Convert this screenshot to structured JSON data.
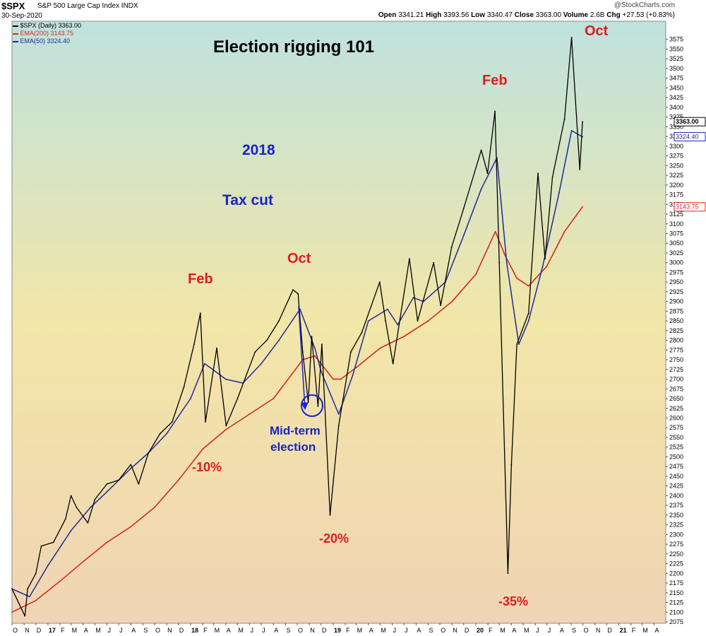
{
  "header": {
    "symbol": "$SPX",
    "description": "S&P 500 Large Cap Index  INDX",
    "date": "30-Sep-2020",
    "watermark": "@StockCharts.com",
    "open_label": "Open",
    "open": "3341.21",
    "high_label": "High",
    "high": "3393.56",
    "low_label": "Low",
    "low": "3340.47",
    "close_label": "Close",
    "close": "3363.00",
    "volume_label": "Volume",
    "volume": "2.6B",
    "chg_label": "Chg",
    "chg": "+27.53 (+0.83%)"
  },
  "legend": {
    "price": "$SPX (Daily) 3363.00",
    "ema200": "EMA(200) 3143.75",
    "ema50": "EMA(50) 3324.40"
  },
  "colors": {
    "price": "#000000",
    "ema200": "#d42a1f",
    "ema50": "#1f2a9a",
    "annotation_red": "#e01c1c",
    "annotation_blue": "#1a22cc",
    "bg_top": "#bfe2de",
    "bg_mid": "#f2e6a8",
    "bg_bottom": "#f0d4b4"
  },
  "chart_data": {
    "type": "line",
    "title": "Election rigging 101",
    "ylim": [
      2075,
      3600
    ],
    "xlim": [
      "2016-10",
      "2021-05"
    ],
    "y_ticks": [
      2075,
      2100,
      2125,
      2150,
      2175,
      2200,
      2225,
      2250,
      2275,
      2300,
      2325,
      2350,
      2375,
      2400,
      2425,
      2450,
      2475,
      2500,
      2525,
      2550,
      2575,
      2600,
      2625,
      2650,
      2675,
      2700,
      2725,
      2750,
      2775,
      2800,
      2825,
      2850,
      2875,
      2900,
      2925,
      2950,
      2975,
      3000,
      3025,
      3050,
      3075,
      3100,
      3125,
      3150,
      3175,
      3200,
      3225,
      3250,
      3275,
      3300,
      3325,
      3350,
      3375,
      3400,
      3425,
      3450,
      3475,
      3500,
      3525,
      3550,
      3575
    ],
    "x_ticks": [
      "O",
      "N",
      "D",
      "17",
      "F",
      "M",
      "A",
      "M",
      "J",
      "J",
      "A",
      "S",
      "O",
      "N",
      "D",
      "18",
      "F",
      "M",
      "A",
      "M",
      "J",
      "J",
      "A",
      "S",
      "O",
      "N",
      "D",
      "19",
      "F",
      "M",
      "A",
      "M",
      "J",
      "J",
      "A",
      "S",
      "O",
      "N",
      "D",
      "20",
      "F",
      "M",
      "A",
      "M",
      "J",
      "J",
      "A",
      "S",
      "O",
      "N",
      "D",
      "21",
      "F",
      "M",
      "A"
    ],
    "value_labels": [
      {
        "value": "3363.00",
        "series": "$SPX"
      },
      {
        "value": "3324.40",
        "series": "EMA(50)"
      },
      {
        "value": "3143.75",
        "series": "EMA(200)"
      }
    ],
    "series": [
      {
        "name": "$SPX",
        "x": [
          "2016-10-01",
          "2016-11-03",
          "2016-11-10",
          "2016-12-01",
          "2016-12-15",
          "2017-01-15",
          "2017-02-15",
          "2017-03-01",
          "2017-03-15",
          "2017-04-13",
          "2017-05-01",
          "2017-06-01",
          "2017-07-01",
          "2017-08-01",
          "2017-08-21",
          "2017-09-15",
          "2017-10-15",
          "2017-11-15",
          "2017-12-15",
          "2018-01-10",
          "2018-01-26",
          "2018-02-08",
          "2018-03-09",
          "2018-04-02",
          "2018-05-01",
          "2018-06-15",
          "2018-07-15",
          "2018-08-15",
          "2018-09-20",
          "2018-10-03",
          "2018-10-15",
          "2018-10-29",
          "2018-11-07",
          "2018-11-23",
          "2018-12-03",
          "2018-12-24",
          "2019-01-15",
          "2019-02-15",
          "2019-03-15",
          "2019-04-30",
          "2019-05-15",
          "2019-06-03",
          "2019-07-15",
          "2019-08-05",
          "2019-09-15",
          "2019-10-03",
          "2019-10-31",
          "2019-12-01",
          "2020-01-15",
          "2020-01-31",
          "2020-02-19",
          "2020-03-01",
          "2020-03-23",
          "2020-04-01",
          "2020-04-15",
          "2020-05-15",
          "2020-06-08",
          "2020-06-26",
          "2020-07-15",
          "2020-08-15",
          "2020-09-02",
          "2020-09-23",
          "2020-09-30"
        ],
        "y": [
          2160,
          2090,
          2160,
          2200,
          2270,
          2280,
          2340,
          2400,
          2370,
          2330,
          2390,
          2430,
          2440,
          2480,
          2430,
          2510,
          2560,
          2590,
          2680,
          2790,
          2870,
          2590,
          2780,
          2580,
          2650,
          2770,
          2800,
          2850,
          2930,
          2920,
          2770,
          2640,
          2810,
          2630,
          2790,
          2350,
          2580,
          2770,
          2820,
          2950,
          2850,
          2740,
          3010,
          2850,
          3000,
          2890,
          3040,
          3140,
          3290,
          3230,
          3390,
          3000,
          2200,
          2480,
          2790,
          2870,
          3230,
          3010,
          3220,
          3370,
          3580,
          3240,
          3363
        ]
      },
      {
        "name": "EMA(50)",
        "x": [
          "2016-10-01",
          "2016-11-15",
          "2017-01-01",
          "2017-03-01",
          "2017-04-20",
          "2017-06-01",
          "2017-08-01",
          "2017-09-15",
          "2017-11-01",
          "2018-01-01",
          "2018-02-06",
          "2018-02-20",
          "2018-04-01",
          "2018-05-15",
          "2018-07-01",
          "2018-08-15",
          "2018-10-08",
          "2018-11-15",
          "2018-12-01",
          "2019-01-15",
          "2019-02-20",
          "2019-04-01",
          "2019-05-20",
          "2019-06-15",
          "2019-07-25",
          "2019-08-20",
          "2019-10-15",
          "2019-12-01",
          "2020-01-15",
          "2020-02-24",
          "2020-03-20",
          "2020-04-20",
          "2020-05-15",
          "2020-06-20",
          "2020-08-01",
          "2020-09-02",
          "2020-09-30"
        ],
        "y": [
          2160,
          2140,
          2220,
          2310,
          2370,
          2410,
          2470,
          2510,
          2560,
          2650,
          2740,
          2730,
          2700,
          2690,
          2740,
          2800,
          2880,
          2780,
          2720,
          2610,
          2710,
          2850,
          2880,
          2840,
          2910,
          2900,
          2950,
          3070,
          3190,
          3270,
          3000,
          2790,
          2850,
          2990,
          3180,
          3340,
          3324
        ]
      },
      {
        "name": "EMA(200)",
        "x": [
          "2016-10-01",
          "2016-12-01",
          "2017-02-01",
          "2017-04-01",
          "2017-06-01",
          "2017-08-01",
          "2017-10-01",
          "2017-12-01",
          "2018-02-01",
          "2018-04-01",
          "2018-06-01",
          "2018-08-01",
          "2018-10-15",
          "2018-11-15",
          "2019-01-01",
          "2019-01-20",
          "2019-03-01",
          "2019-05-01",
          "2019-07-01",
          "2019-09-01",
          "2019-11-01",
          "2020-01-01",
          "2020-02-20",
          "2020-03-15",
          "2020-04-15",
          "2020-05-15",
          "2020-06-30",
          "2020-08-15",
          "2020-09-30"
        ],
        "y": [
          2100,
          2130,
          2180,
          2230,
          2280,
          2320,
          2370,
          2440,
          2520,
          2570,
          2610,
          2650,
          2750,
          2760,
          2700,
          2700,
          2730,
          2780,
          2810,
          2850,
          2900,
          2970,
          3080,
          3020,
          2960,
          2940,
          2990,
          3080,
          3144
        ]
      }
    ],
    "annotations": [
      {
        "text": "Feb",
        "color": "red"
      },
      {
        "text": "Oct",
        "color": "red"
      },
      {
        "text": "Feb",
        "color": "red"
      },
      {
        "text": "Oct",
        "color": "red"
      },
      {
        "text": "-10%",
        "color": "red"
      },
      {
        "text": "-20%",
        "color": "red"
      },
      {
        "text": "-35%",
        "color": "red"
      },
      {
        "text": "2018",
        "color": "blue"
      },
      {
        "text": "Tax cut",
        "color": "blue"
      },
      {
        "text": "Mid-term",
        "color": "blue"
      },
      {
        "text": "election",
        "color": "blue"
      }
    ]
  }
}
